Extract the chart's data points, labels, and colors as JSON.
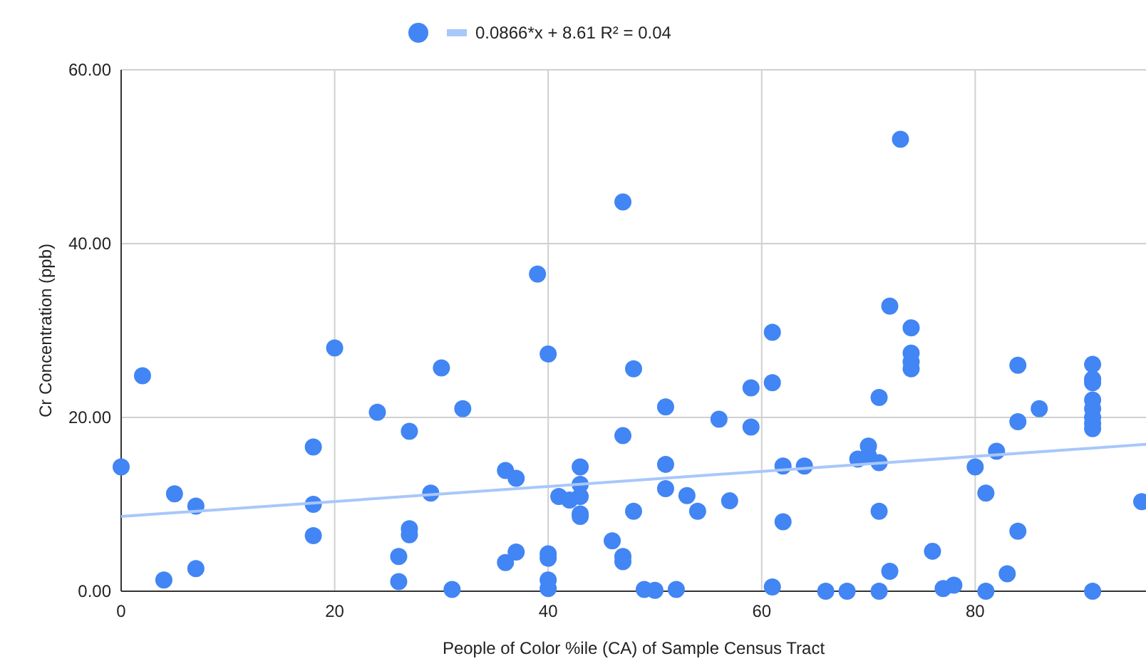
{
  "chart_data": {
    "type": "scatter",
    "xlabel": "People of Color %ile (CA) of Sample Census Tract",
    "ylabel": "Cr Concentration (ppb)",
    "xlim": [
      0,
      96
    ],
    "ylim": [
      0,
      60
    ],
    "xticks": [
      0,
      20,
      40,
      60,
      80
    ],
    "yticks": [
      {
        "value": 0,
        "label": "0.00"
      },
      {
        "value": 20,
        "label": "20.00"
      },
      {
        "value": 40,
        "label": "40.00"
      },
      {
        "value": 60,
        "label": "60.00"
      }
    ],
    "grid": true,
    "legend": "top",
    "marker": "circle",
    "series": [
      {
        "color": "#4285f4",
        "x": [
          0,
          2,
          4,
          5,
          7,
          7,
          18,
          18,
          18,
          20,
          24,
          26,
          26,
          27,
          27,
          27,
          29,
          30,
          31,
          32,
          36,
          36,
          37,
          37,
          39,
          40,
          40,
          40,
          40,
          40,
          41,
          42,
          43,
          43,
          43,
          43,
          43,
          46,
          47,
          47,
          47,
          47,
          48,
          48,
          49,
          50,
          51,
          51,
          51,
          52,
          53,
          54,
          56,
          57,
          59,
          59,
          61,
          61,
          61,
          62,
          62,
          64,
          66,
          68,
          69,
          70,
          70,
          71,
          71,
          71,
          71,
          72,
          72,
          73,
          74,
          74,
          74,
          74,
          76,
          77,
          78,
          80,
          81,
          81,
          82,
          83,
          84,
          84,
          84,
          86,
          91,
          91,
          91,
          91,
          91,
          91,
          91,
          91,
          91,
          95.6
        ],
        "values": [
          14.3,
          24.8,
          1.3,
          11.2,
          9.8,
          2.6,
          16.6,
          10,
          6.4,
          28,
          20.6,
          1.1,
          4,
          18.4,
          7.2,
          6.5,
          11.3,
          25.7,
          0.2,
          21,
          3.3,
          13.9,
          13,
          4.5,
          36.5,
          27.3,
          4.3,
          3.8,
          1.3,
          0.3,
          10.9,
          10.5,
          10.9,
          14.3,
          12.3,
          8.9,
          8.6,
          5.8,
          44.8,
          17.9,
          4,
          3.4,
          25.6,
          9.2,
          0.2,
          0.1,
          21.2,
          14.6,
          11.8,
          0.2,
          11,
          9.2,
          19.8,
          10.4,
          23.4,
          18.9,
          29.8,
          24,
          0.5,
          8,
          14.4,
          14.4,
          0,
          0,
          15.2,
          15.6,
          16.7,
          22.3,
          14.8,
          9.2,
          0,
          32.8,
          2.3,
          52,
          30.3,
          27.4,
          26.4,
          25.6,
          4.6,
          0.3,
          0.7,
          14.3,
          11.3,
          0,
          16.1,
          2,
          26,
          19.5,
          6.9,
          21,
          26.1,
          24.4,
          24,
          22,
          21,
          20,
          19.3,
          18.7,
          0,
          10.3
        ]
      },
      {
        "type": "line",
        "name": "0.0866*x + 8.61 R² = 0.04",
        "color": "#a8c7fa",
        "marker": "none",
        "x": [
          0,
          96
        ],
        "values": [
          8.6,
          16.9
        ]
      }
    ]
  }
}
